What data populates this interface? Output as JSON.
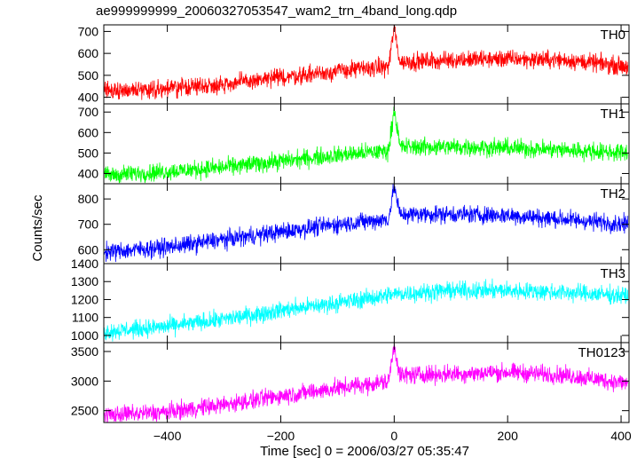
{
  "chart_data": {
    "type": "line",
    "title": "ae999999999_20060327053547_wam2_trn_4band_long.qdp",
    "xlabel": "Time [sec] 0 = 2006/03/27 05:35:47",
    "ylabel": "Counts/sec",
    "xlim": [
      -512,
      414
    ],
    "x_ticks": [
      -400,
      -200,
      0,
      200,
      400
    ],
    "x_tick_labels": [
      "−400",
      "−200",
      "0",
      "200",
      "400"
    ],
    "grid": false,
    "panels": [
      {
        "name": "TH0",
        "color": "#ff0000",
        "ylim": [
          370,
          730
        ],
        "y_ticks": [
          400,
          500,
          600,
          700
        ],
        "keypoints": {
          "x": [
            -512,
            -400,
            -300,
            -200,
            -100,
            -10,
            0,
            10,
            100,
            200,
            300,
            414
          ],
          "y": [
            430,
            440,
            460,
            490,
            520,
            540,
            720,
            560,
            570,
            575,
            570,
            540
          ]
        }
      },
      {
        "name": "TH1",
        "color": "#00ff00",
        "ylim": [
          350,
          740
        ],
        "y_ticks": [
          400,
          500,
          600,
          700
        ],
        "keypoints": {
          "x": [
            -512,
            -400,
            -300,
            -200,
            -100,
            -10,
            0,
            10,
            100,
            200,
            300,
            414
          ],
          "y": [
            390,
            410,
            430,
            460,
            490,
            510,
            720,
            530,
            530,
            525,
            515,
            500
          ]
        }
      },
      {
        "name": "TH2",
        "color": "#0000ff",
        "ylim": [
          545,
          860
        ],
        "y_ticks": [
          600,
          700,
          800
        ],
        "keypoints": {
          "x": [
            -512,
            -400,
            -300,
            -200,
            -100,
            -10,
            0,
            10,
            100,
            200,
            300,
            414
          ],
          "y": [
            590,
            610,
            640,
            670,
            700,
            720,
            850,
            740,
            740,
            735,
            720,
            700
          ]
        }
      },
      {
        "name": "TH3",
        "color": "#00ffff",
        "ylim": [
          960,
          1400
        ],
        "y_ticks": [
          1000,
          1100,
          1200,
          1300,
          1400
        ],
        "keypoints": {
          "x": [
            -512,
            -400,
            -300,
            -200,
            -100,
            0,
            100,
            200,
            300,
            414
          ],
          "y": [
            1020,
            1050,
            1090,
            1140,
            1180,
            1230,
            1250,
            1250,
            1240,
            1220
          ]
        }
      },
      {
        "name": "TH0123",
        "color": "#ff00ff",
        "ylim": [
          2300,
          3650
        ],
        "y_ticks": [
          2500,
          3000,
          3500
        ],
        "keypoints": {
          "x": [
            -512,
            -400,
            -300,
            -200,
            -100,
            -10,
            0,
            10,
            100,
            200,
            300,
            414
          ],
          "y": [
            2420,
            2480,
            2600,
            2750,
            2880,
            2990,
            3600,
            3100,
            3120,
            3150,
            3100,
            2960
          ]
        }
      }
    ]
  }
}
